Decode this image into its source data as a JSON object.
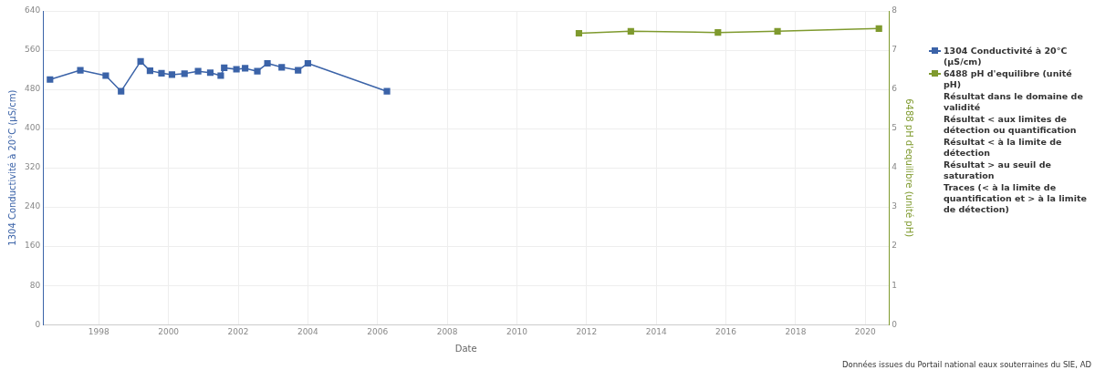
{
  "chart_data": {
    "type": "line",
    "xlabel": "Date",
    "ylabel": "1304 Conductivité à 20°C (µS/cm)",
    "y2label": "6488 pH d'equilibre (unité pH)",
    "xlim": [
      1996.4,
      2020.68
    ],
    "xticks": [
      1998,
      2000,
      2002,
      2004,
      2006,
      2008,
      2010,
      2012,
      2014,
      2016,
      2018,
      2020
    ],
    "ylim": [
      0,
      640
    ],
    "yticks": [
      0,
      80,
      160,
      240,
      320,
      400,
      480,
      560,
      640
    ],
    "y2lim": [
      0,
      8
    ],
    "y2ticks": [
      0,
      1,
      2,
      3,
      4,
      5,
      6,
      7,
      8
    ],
    "grid": true,
    "legend": "right",
    "marker": "square",
    "line_style": "solid",
    "series": [
      {
        "name": "1304 Conductivité à 20°C (µS/cm)",
        "color": "#3b63a8",
        "x": [
          1996.6,
          1997.47,
          1998.2,
          1998.64,
          1999.2,
          1999.47,
          1999.8,
          2000.1,
          2000.46,
          2000.85,
          2001.2,
          2001.5,
          2001.6,
          2001.95,
          2002.2,
          2002.55,
          2002.84,
          2003.25,
          2003.72,
          2004.0,
          2006.27
        ],
        "values": [
          500,
          519,
          508,
          476,
          537,
          518,
          513,
          510,
          512,
          517,
          514,
          508,
          524,
          521,
          523,
          517,
          533,
          525,
          519,
          533,
          476
        ]
      },
      {
        "name": "6488 pH d'equilibre (unité pH)",
        "color": "#7f9a2e",
        "axis": "y2",
        "x": [
          2011.78,
          2013.27,
          2015.77,
          2017.48,
          2020.39
        ],
        "values": [
          7.43,
          7.48,
          7.45,
          7.48,
          7.55
        ]
      }
    ],
    "annotations": [
      "Résultat dans le domaine de validité",
      "Résultat < aux limites de détection ou quantification",
      "Résultat < à la limite de détection",
      "Résultat > au seuil de saturation",
      "Traces (< à la limite de quantification et > à la limite de détection)",
      "Données issues du Portail national eaux souterraines du SIE, AD"
    ]
  }
}
